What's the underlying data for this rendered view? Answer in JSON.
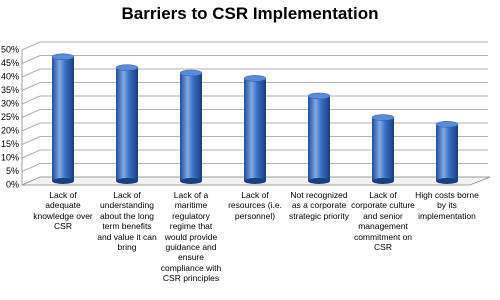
{
  "chart_data": {
    "type": "bar",
    "title": "Barriers to CSR Implementation",
    "categories": [
      "Lack of adequate knowledge over CSR",
      "Lack of understanding about the long term benefits and value it can bring",
      "Lack of a maritime regulatory regime that would provide guidance and ensure compliance with CSR principles",
      "Lack of resources (i.e. personnel)",
      "Not recognized as a corporate strategic priority",
      "Lack of corporate culture and senior management commitment on CSR",
      "High costs borne by its implementation"
    ],
    "values": [
      46,
      42,
      40,
      38,
      31.5,
      23.5,
      21
    ],
    "color": "#3a6fc4",
    "ylim": [
      0,
      50
    ],
    "yticks": [
      {
        "value": 0,
        "label": "0%"
      },
      {
        "value": 5,
        "label": "5%"
      },
      {
        "value": 10,
        "label": "10%"
      },
      {
        "value": 15,
        "label": "15%"
      },
      {
        "value": 20,
        "label": "20%"
      },
      {
        "value": 25,
        "label": "25%"
      },
      {
        "value": 30,
        "label": "30%"
      },
      {
        "value": 35,
        "label": "35%"
      },
      {
        "value": 40,
        "label": "40%"
      },
      {
        "value": 45,
        "label": "45%"
      },
      {
        "value": 50,
        "label": "50%"
      }
    ],
    "grid": true
  }
}
